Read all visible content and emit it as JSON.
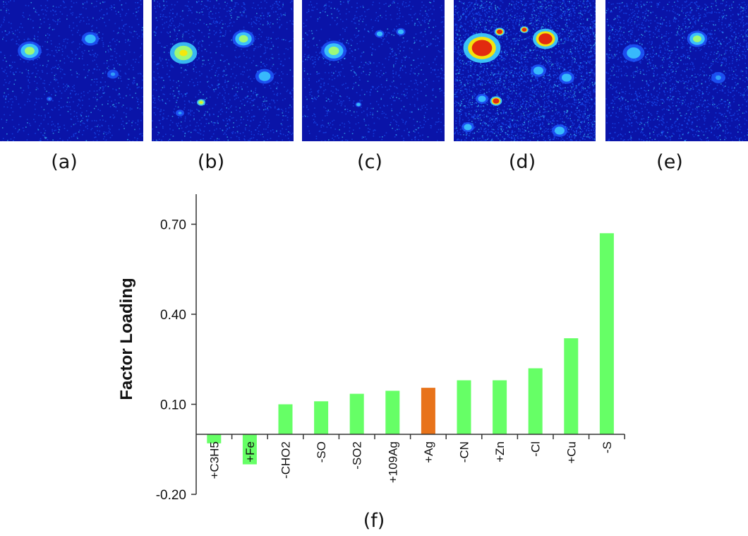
{
  "panels": [
    {
      "label": "(a)"
    },
    {
      "label": "(b)"
    },
    {
      "label": "(c)"
    },
    {
      "label": "(d)"
    },
    {
      "label": "(e)"
    }
  ],
  "map_colors": {
    "background": "#0a14a8",
    "low": "#1e5bff",
    "mid": "#3fd4ff",
    "high": "#a8ff6a",
    "hot": "#ffe400",
    "max": "#e02010"
  },
  "chart_data": {
    "type": "bar",
    "label": "(f)",
    "ylabel": "Factor Loading",
    "xlabel": "",
    "ylim": [
      -0.2,
      0.8
    ],
    "yticks": [
      -0.2,
      0.1,
      0.4,
      0.7
    ],
    "ytick_labels": [
      "-0.20",
      "0.10",
      "0.40",
      "0.70"
    ],
    "categories": [
      "+C3H5",
      "+Fe",
      "-CHO2",
      "-SO",
      "-SO2",
      "+109Ag",
      "+Ag",
      "-CN",
      "+Zn",
      "-Cl",
      "+Cu",
      "-S"
    ],
    "values": [
      -0.03,
      -0.1,
      0.1,
      0.11,
      0.135,
      0.145,
      0.155,
      0.18,
      0.18,
      0.22,
      0.32,
      0.67
    ],
    "bar_colors": [
      "#66ff66",
      "#66ff66",
      "#66ff66",
      "#66ff66",
      "#66ff66",
      "#66ff66",
      "#e8731a",
      "#66ff66",
      "#66ff66",
      "#66ff66",
      "#66ff66",
      "#66ff66"
    ],
    "grid": false
  }
}
